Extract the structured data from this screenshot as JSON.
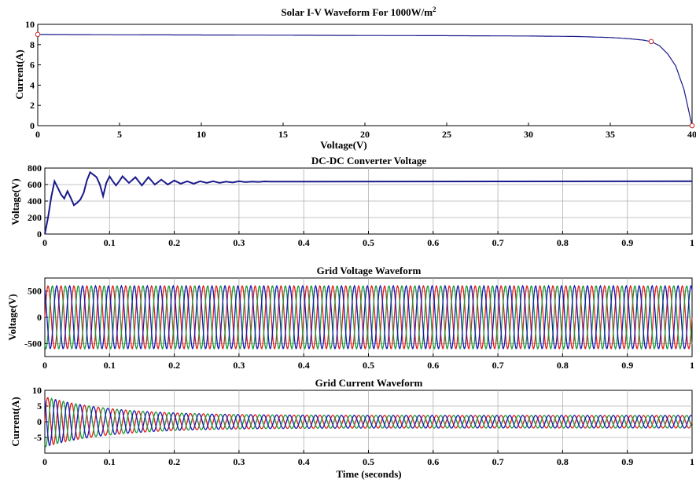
{
  "figure": {
    "colors": {
      "navy": "#1a1a8c",
      "red": "#e0201b",
      "green": "#1a9a3a",
      "blue": "#1a1ab0",
      "grid": "#b0b0b0",
      "marker": "#cc2222"
    }
  },
  "chart_data": [
    {
      "id": "iv",
      "type": "line",
      "title": "Solar I-V Waveform For 1000W/m",
      "title_sup": "2",
      "xlabel": "Voltage(V)",
      "ylabel": "Current(A)",
      "xlim": [
        0,
        40
      ],
      "ylim": [
        0,
        10
      ],
      "x_ticks": [
        "0",
        "5",
        "10",
        "15",
        "20",
        "25",
        "30",
        "35",
        "40"
      ],
      "x_tick_values": [
        0,
        5,
        10,
        15,
        20,
        25,
        30,
        35,
        40
      ],
      "y_ticks": [
        "0",
        "2",
        "4",
        "6",
        "8",
        "10"
      ],
      "y_tick_values": [
        0,
        2,
        4,
        6,
        8,
        10
      ],
      "grid": false,
      "series": [
        {
          "x": [
            0,
            5,
            10,
            15,
            20,
            25,
            30,
            33,
            35,
            36,
            37,
            37.5,
            38,
            38.5,
            39,
            39.5,
            40
          ],
          "y": [
            9.0,
            8.97,
            8.95,
            8.93,
            8.9,
            8.88,
            8.85,
            8.8,
            8.7,
            8.6,
            8.45,
            8.3,
            7.9,
            7.1,
            5.9,
            3.6,
            0
          ]
        }
      ],
      "markers": [
        {
          "x": 0,
          "y": 9.0
        },
        {
          "x": 37.5,
          "y": 8.3
        },
        {
          "x": 40,
          "y": 0
        }
      ]
    },
    {
      "id": "dcdc",
      "type": "line",
      "title": "DC-DC Converter Voltage",
      "xlabel": "",
      "ylabel": "Voltage(V)",
      "xlim": [
        0,
        1
      ],
      "ylim": [
        0,
        800
      ],
      "x_ticks": [
        "0",
        "0.1",
        "0.2",
        "0.3",
        "0.4",
        "0.5",
        "0.6",
        "0.7",
        "0.8",
        "0.9",
        "1"
      ],
      "x_tick_values": [
        0,
        0.1,
        0.2,
        0.3,
        0.4,
        0.5,
        0.6,
        0.7,
        0.8,
        0.9,
        1
      ],
      "y_ticks": [
        "0",
        "200",
        "400",
        "600",
        "800"
      ],
      "y_tick_values": [
        0,
        200,
        400,
        600,
        800
      ],
      "grid": true,
      "series": [
        {
          "x": [
            0,
            0.005,
            0.01,
            0.015,
            0.02,
            0.025,
            0.03,
            0.035,
            0.04,
            0.045,
            0.05,
            0.055,
            0.06,
            0.065,
            0.07,
            0.075,
            0.08,
            0.085,
            0.09,
            0.095,
            0.1,
            0.105,
            0.11,
            0.115,
            0.12,
            0.13,
            0.14,
            0.15,
            0.16,
            0.17,
            0.18,
            0.19,
            0.2,
            0.21,
            0.22,
            0.23,
            0.24,
            0.25,
            0.26,
            0.27,
            0.28,
            0.29,
            0.3,
            0.31,
            0.32,
            0.33,
            0.34,
            0.35,
            1.0
          ],
          "y": [
            0,
            200,
            450,
            640,
            560,
            480,
            430,
            520,
            440,
            350,
            380,
            420,
            500,
            650,
            750,
            720,
            690,
            600,
            460,
            620,
            700,
            640,
            590,
            640,
            700,
            620,
            690,
            590,
            690,
            600,
            660,
            600,
            650,
            610,
            640,
            610,
            640,
            620,
            640,
            620,
            635,
            625,
            640,
            630,
            636,
            632,
            638,
            635,
            640
          ]
        }
      ]
    },
    {
      "id": "gridv",
      "type": "line",
      "title": "Grid Voltage Waveform",
      "xlabel": "",
      "ylabel": "Voltage(V)",
      "xlim": [
        0,
        1
      ],
      "ylim": [
        -750,
        750
      ],
      "x_ticks": [
        "0",
        "0.1",
        "0.2",
        "0.3",
        "0.4",
        "0.5",
        "0.6",
        "0.7",
        "0.8",
        "0.9",
        "1"
      ],
      "x_tick_values": [
        0,
        0.1,
        0.2,
        0.3,
        0.4,
        0.5,
        0.6,
        0.7,
        0.8,
        0.9,
        1
      ],
      "y_ticks": [
        "-500",
        "0",
        "500"
      ],
      "y_tick_values": [
        -500,
        0,
        500
      ],
      "grid": true,
      "series": [
        {
          "waveform": "three-phase-sine",
          "amplitude_V": 600,
          "frequency_Hz": 50,
          "phases": [
            "red",
            "green",
            "blue"
          ]
        }
      ]
    },
    {
      "id": "gridi",
      "type": "line",
      "title": "Grid Current Waveform",
      "xlabel": "Time (seconds)",
      "ylabel": "Current(A)",
      "xlim": [
        0,
        1
      ],
      "ylim": [
        -10,
        10
      ],
      "x_ticks": [
        "0",
        "0.1",
        "0.2",
        "0.3",
        "0.4",
        "0.5",
        "0.6",
        "0.7",
        "0.8",
        "0.9",
        "1"
      ],
      "x_tick_values": [
        0,
        0.1,
        0.2,
        0.3,
        0.4,
        0.5,
        0.6,
        0.7,
        0.8,
        0.9,
        1
      ],
      "y_ticks": [
        "-5",
        "0",
        "5",
        "10"
      ],
      "y_tick_values": [
        -5,
        0,
        5,
        10
      ],
      "grid": true,
      "series": [
        {
          "waveform": "three-phase-sine",
          "frequency_Hz": 50,
          "phases": [
            "red",
            "green",
            "blue"
          ],
          "peak_start_A": 8,
          "steady_peak_A": 2,
          "settle_time_s": 0.3
        }
      ]
    }
  ]
}
